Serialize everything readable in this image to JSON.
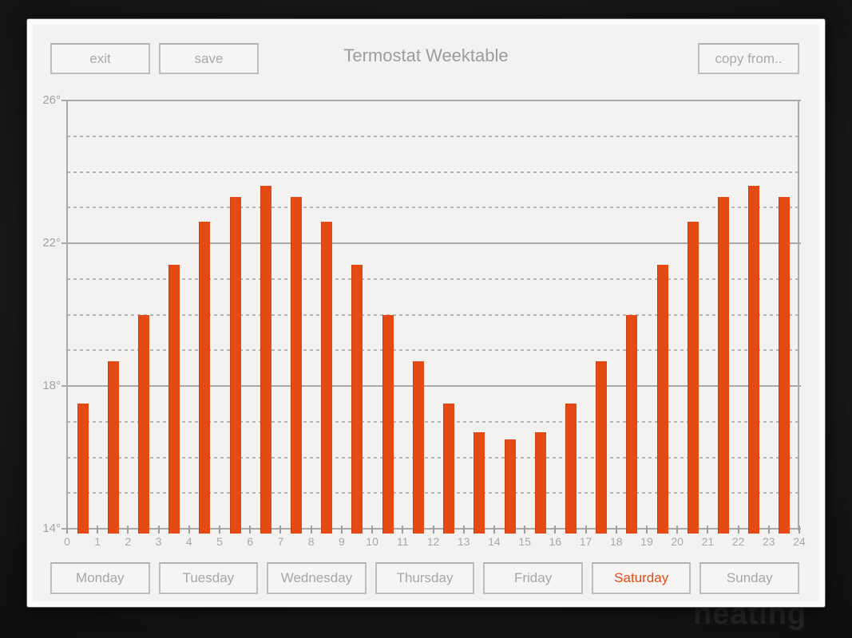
{
  "header": {
    "title": "Termostat Weektable"
  },
  "toolbar": {
    "exit_label": "exit",
    "save_label": "save",
    "copy_label": "copy from.."
  },
  "background_text": "heating",
  "days": [
    {
      "label": "Monday",
      "selected": false
    },
    {
      "label": "Tuesday",
      "selected": false
    },
    {
      "label": "Wednesday",
      "selected": false
    },
    {
      "label": "Thursday",
      "selected": false
    },
    {
      "label": "Friday",
      "selected": false
    },
    {
      "label": "Saturday",
      "selected": true
    },
    {
      "label": "Sunday",
      "selected": false
    }
  ],
  "colors": {
    "accent": "#e64a14",
    "panel_bg": "#f3f2f1",
    "frame_bg": "#fbfbfb",
    "grid_major": "#a9a9a9",
    "grid_minor": "#b6b6b6",
    "muted_text": "#a6a6a6"
  },
  "chart_data": {
    "type": "bar",
    "title": "Termostat Weektable",
    "categories": [
      0,
      1,
      2,
      3,
      4,
      5,
      6,
      7,
      8,
      9,
      10,
      11,
      12,
      13,
      14,
      15,
      16,
      17,
      18,
      19,
      20,
      21,
      22,
      23
    ],
    "values": [
      17.5,
      18.7,
      20.0,
      21.4,
      22.6,
      23.3,
      23.6,
      23.3,
      22.6,
      21.4,
      20.0,
      18.7,
      17.5,
      16.7,
      16.5,
      16.7,
      17.5,
      18.7,
      20.0,
      21.4,
      22.6,
      23.3,
      23.6,
      23.3
    ],
    "unit": "degrees",
    "xlabel": "",
    "ylabel": "",
    "ylim": [
      14,
      26
    ],
    "y_major_ticks": [
      {
        "value": 26,
        "label": "26°"
      },
      {
        "value": 22,
        "label": "22°"
      },
      {
        "value": 18,
        "label": "18°"
      },
      {
        "value": 14,
        "label": "14°"
      }
    ],
    "y_minor_gridlines": [
      25,
      24,
      23,
      21,
      20,
      19,
      17,
      16,
      15
    ],
    "x_tick_labels": [
      "0",
      "1",
      "2",
      "3",
      "4",
      "5",
      "6",
      "7",
      "8",
      "9",
      "10",
      "11",
      "12",
      "13",
      "14",
      "15",
      "16",
      "17",
      "18",
      "19",
      "20",
      "21",
      "22",
      "23",
      "24"
    ],
    "bar_color": "#e64a14",
    "grid": "solid major, dashed minor",
    "legend": null,
    "selected_day": "Saturday"
  }
}
